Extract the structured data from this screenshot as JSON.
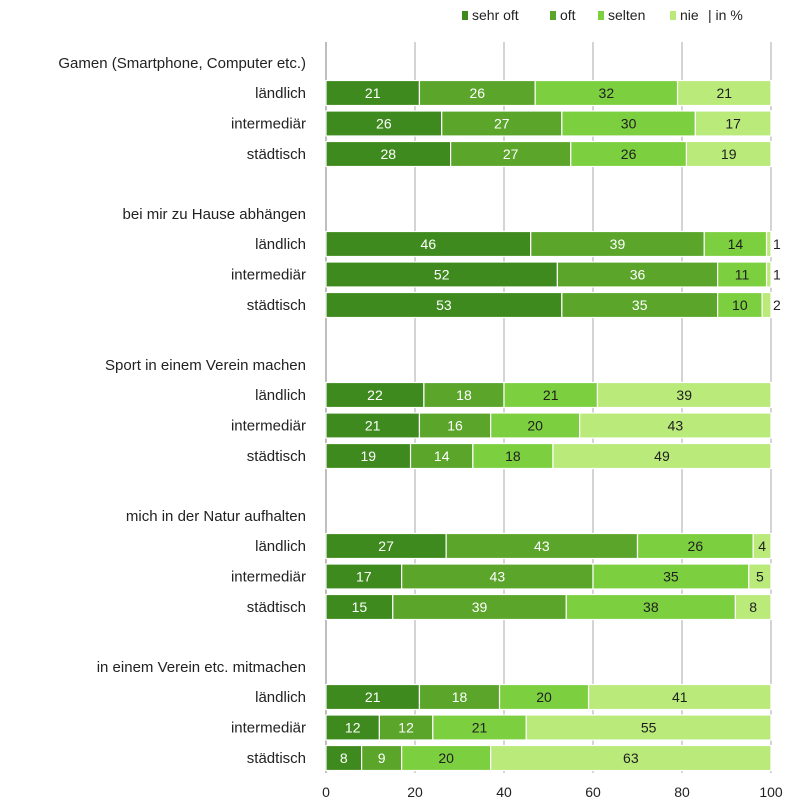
{
  "chart_data": {
    "type": "bar",
    "orientation": "horizontal",
    "stacked": true,
    "legend": {
      "placement": "top-right",
      "entries": [
        {
          "name": "sehr oft",
          "color": "#3f8a1e"
        },
        {
          "name": "oft",
          "color": "#5aa52a"
        },
        {
          "name": "selten",
          "color": "#7ccf3f"
        },
        {
          "name": "nie",
          "color": "#b9ea7a"
        }
      ],
      "suffix": "| in %"
    },
    "xlim": [
      0,
      100
    ],
    "xticks": [
      0,
      20,
      40,
      60,
      80,
      100
    ],
    "grid": true,
    "groups": [
      {
        "title": "Gamen (Smartphone, Computer etc.)",
        "rows": [
          {
            "label": "ländlich",
            "values": [
              21,
              26,
              32,
              21
            ]
          },
          {
            "label": "intermediär",
            "values": [
              26,
              27,
              30,
              17
            ]
          },
          {
            "label": "städtisch",
            "values": [
              28,
              27,
              26,
              19
            ]
          }
        ]
      },
      {
        "title": "bei mir zu Hause abhängen",
        "rows": [
          {
            "label": "ländlich",
            "values": [
              46,
              39,
              14,
              1
            ]
          },
          {
            "label": "intermediär",
            "values": [
              52,
              36,
              11,
              1
            ]
          },
          {
            "label": "städtisch",
            "values": [
              53,
              35,
              10,
              2
            ]
          }
        ]
      },
      {
        "title": "Sport in einem Verein machen",
        "rows": [
          {
            "label": "ländlich",
            "values": [
              22,
              18,
              21,
              39
            ]
          },
          {
            "label": "intermediär",
            "values": [
              21,
              16,
              20,
              43
            ]
          },
          {
            "label": "städtisch",
            "values": [
              19,
              14,
              18,
              49
            ]
          }
        ]
      },
      {
        "title": "mich in der Natur aufhalten",
        "rows": [
          {
            "label": "ländlich",
            "values": [
              27,
              43,
              26,
              4
            ]
          },
          {
            "label": "intermediär",
            "values": [
              17,
              43,
              35,
              5
            ]
          },
          {
            "label": "städtisch",
            "values": [
              15,
              39,
              38,
              8
            ]
          }
        ]
      },
      {
        "title": "in einem Verein etc. mitmachen",
        "rows": [
          {
            "label": "ländlich",
            "values": [
              21,
              18,
              20,
              41
            ]
          },
          {
            "label": "intermediär",
            "values": [
              12,
              12,
              21,
              55
            ]
          },
          {
            "label": "städtisch",
            "values": [
              8,
              9,
              20,
              63
            ]
          }
        ]
      }
    ]
  }
}
